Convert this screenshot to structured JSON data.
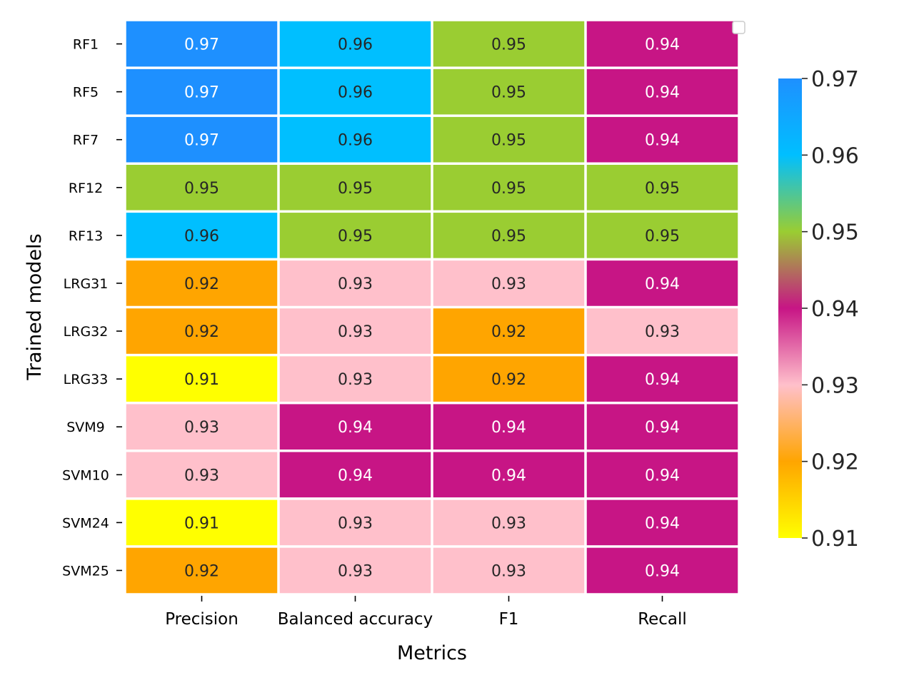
{
  "chart_data": {
    "type": "heatmap",
    "xlabel": "Metrics",
    "ylabel": "Trained models",
    "columns": [
      "Precision",
      "Balanced accuracy",
      "F1",
      "Recall"
    ],
    "rows": [
      "RF1",
      "RF5",
      "RF7",
      "RF12",
      "RF13",
      "LRG31",
      "LRG32",
      "LRG33",
      "SVM9",
      "SVM10",
      "SVM24",
      "SVM25"
    ],
    "values": [
      [
        0.97,
        0.96,
        0.95,
        0.94
      ],
      [
        0.97,
        0.96,
        0.95,
        0.94
      ],
      [
        0.97,
        0.96,
        0.95,
        0.94
      ],
      [
        0.95,
        0.95,
        0.95,
        0.95
      ],
      [
        0.96,
        0.95,
        0.95,
        0.95
      ],
      [
        0.92,
        0.93,
        0.93,
        0.94
      ],
      [
        0.92,
        0.93,
        0.92,
        0.93
      ],
      [
        0.91,
        0.93,
        0.92,
        0.94
      ],
      [
        0.93,
        0.94,
        0.94,
        0.94
      ],
      [
        0.93,
        0.94,
        0.94,
        0.94
      ],
      [
        0.91,
        0.93,
        0.93,
        0.94
      ],
      [
        0.92,
        0.93,
        0.93,
        0.94
      ]
    ],
    "value_labels": [
      [
        "0.97",
        "0.96",
        "0.95",
        "0.94"
      ],
      [
        "0.97",
        "0.96",
        "0.95",
        "0.94"
      ],
      [
        "0.97",
        "0.96",
        "0.95",
        "0.94"
      ],
      [
        "0.95",
        "0.95",
        "0.95",
        "0.95"
      ],
      [
        "0.96",
        "0.95",
        "0.95",
        "0.95"
      ],
      [
        "0.92",
        "0.93",
        "0.93",
        "0.94"
      ],
      [
        "0.92",
        "0.93",
        "0.92",
        "0.93"
      ],
      [
        "0.91",
        "0.93",
        "0.92",
        "0.94"
      ],
      [
        "0.93",
        "0.94",
        "0.94",
        "0.94"
      ],
      [
        "0.93",
        "0.94",
        "0.94",
        "0.94"
      ],
      [
        "0.91",
        "0.93",
        "0.93",
        "0.94"
      ],
      [
        "0.92",
        "0.93",
        "0.93",
        "0.94"
      ]
    ],
    "colorbar": {
      "vmin": 0.91,
      "vmax": 0.97,
      "ticks": [
        "0.91",
        "0.92",
        "0.93",
        "0.94",
        "0.95",
        "0.96",
        "0.97"
      ]
    },
    "colormap": [
      {
        "value": 0.91,
        "color": "#ffff00"
      },
      {
        "value": 0.92,
        "color": "#ffa500"
      },
      {
        "value": 0.93,
        "color": "#ffc0cb"
      },
      {
        "value": 0.94,
        "color": "#c71585"
      },
      {
        "value": 0.95,
        "color": "#9acd32"
      },
      {
        "value": 0.96,
        "color": "#00bfff"
      },
      {
        "value": 0.97,
        "color": "#1e90ff"
      }
    ],
    "annotation_colors": {
      "dark": "#262626",
      "light": "#ffffff"
    },
    "cell_border_color": "#fffaf0",
    "legend": "top-right (empty)"
  }
}
